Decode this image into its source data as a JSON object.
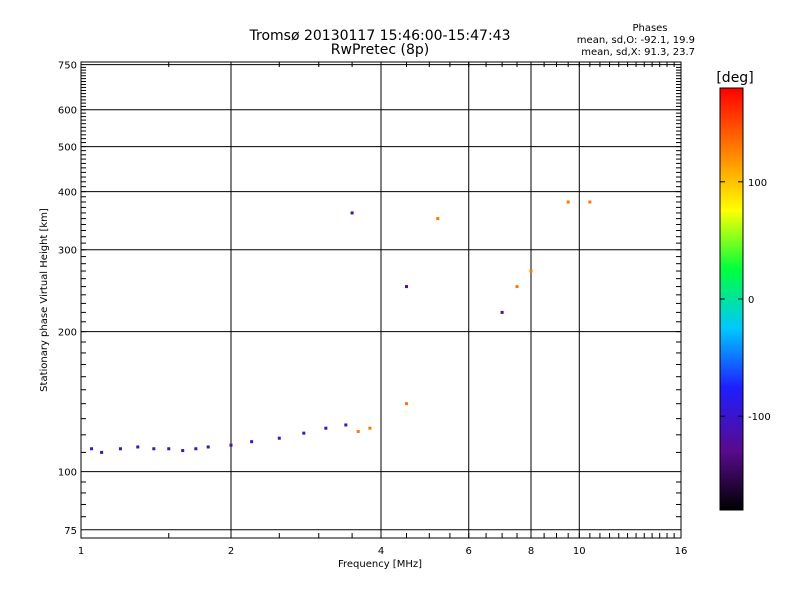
{
  "chart_data": {
    "type": "scatter",
    "title": "Tromsø 20130117 15:46:00-15:47:43",
    "subtitle": "RwPretec (8p)",
    "xlabel": "Frequency [MHz]",
    "ylabel": "Stationary phase Virtual Height [km]",
    "x_scale": "log",
    "y_scale": "log",
    "xlim": [
      1,
      16
    ],
    "ylim": [
      72,
      760
    ],
    "x_ticks": [
      1,
      2,
      4,
      6,
      8,
      10,
      16
    ],
    "y_ticks": [
      75,
      100,
      200,
      300,
      400,
      500,
      600,
      750
    ],
    "grid": true,
    "legend": {
      "title": "Phases",
      "lines": [
        "mean, sd,O: -92.1, 19.9",
        "mean, sd,X:  91.3, 23.7"
      ]
    },
    "colorbar": {
      "label": "[deg]",
      "range": [
        -180,
        180
      ],
      "ticks": [
        100,
        0,
        -100
      ],
      "colors": [
        "#000000",
        "#5a0a8c",
        "#1e1eff",
        "#00c8ff",
        "#00ff3c",
        "#ffff00",
        "#ff7800",
        "#ff0000"
      ]
    },
    "series": [
      {
        "values": [
          {
            "x": 1.05,
            "y": 112,
            "c": -110
          },
          {
            "x": 1.1,
            "y": 110,
            "c": -110
          },
          {
            "x": 1.2,
            "y": 112,
            "c": -110
          },
          {
            "x": 1.3,
            "y": 113,
            "c": -110
          },
          {
            "x": 1.4,
            "y": 112,
            "c": -110
          },
          {
            "x": 1.5,
            "y": 112,
            "c": -110
          },
          {
            "x": 1.6,
            "y": 111,
            "c": -110
          },
          {
            "x": 1.7,
            "y": 112,
            "c": -110
          },
          {
            "x": 1.8,
            "y": 113,
            "c": -110
          },
          {
            "x": 2.0,
            "y": 114,
            "c": -110
          },
          {
            "x": 2.2,
            "y": 116,
            "c": -110
          },
          {
            "x": 2.5,
            "y": 118,
            "c": -110
          },
          {
            "x": 2.8,
            "y": 121,
            "c": -110
          },
          {
            "x": 3.1,
            "y": 124,
            "c": -110
          },
          {
            "x": 3.4,
            "y": 126,
            "c": -110
          },
          {
            "x": 3.6,
            "y": 122,
            "c": 130
          },
          {
            "x": 3.8,
            "y": 124,
            "c": 130
          },
          {
            "x": 4.5,
            "y": 140,
            "c": 130
          },
          {
            "x": 3.5,
            "y": 360,
            "c": -120
          },
          {
            "x": 4.5,
            "y": 250,
            "c": -120
          },
          {
            "x": 5.2,
            "y": 350,
            "c": 130
          },
          {
            "x": 7.5,
            "y": 250,
            "c": 130
          },
          {
            "x": 8.0,
            "y": 270,
            "c": 130
          },
          {
            "x": 7.0,
            "y": 220,
            "c": -120
          },
          {
            "x": 9.5,
            "y": 380,
            "c": 130
          },
          {
            "x": 10.5,
            "y": 380,
            "c": 130
          }
        ]
      }
    ]
  }
}
